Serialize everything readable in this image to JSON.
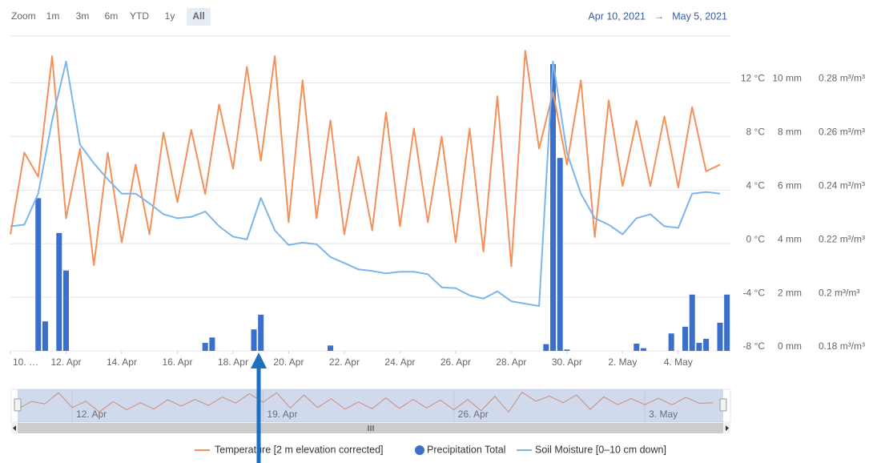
{
  "chart_data": {
    "type": "stock",
    "range_selector": {
      "label": "Zoom",
      "buttons": [
        {
          "text": "1m",
          "enabled": false
        },
        {
          "text": "3m",
          "enabled": false
        },
        {
          "text": "6m",
          "enabled": false
        },
        {
          "text": "YTD",
          "enabled": true
        },
        {
          "text": "1y",
          "enabled": false
        },
        {
          "text": "All",
          "enabled": true,
          "active": true
        }
      ],
      "from": "Apr 10, 2021",
      "separator": "→",
      "to": "May 5, 2021"
    },
    "x": [
      "2021-04-10T00:00",
      "2021-04-10T12:00",
      "2021-04-11T00:00",
      "2021-04-11T12:00",
      "2021-04-12T00:00",
      "2021-04-12T12:00",
      "2021-04-13T00:00",
      "2021-04-13T12:00",
      "2021-04-14T00:00",
      "2021-04-14T12:00",
      "2021-04-15T00:00",
      "2021-04-15T12:00",
      "2021-04-16T00:00",
      "2021-04-16T12:00",
      "2021-04-17T00:00",
      "2021-04-17T12:00",
      "2021-04-18T00:00",
      "2021-04-18T12:00",
      "2021-04-19T00:00",
      "2021-04-19T12:00",
      "2021-04-20T00:00",
      "2021-04-20T12:00",
      "2021-04-21T00:00",
      "2021-04-21T12:00",
      "2021-04-22T00:00",
      "2021-04-22T12:00",
      "2021-04-23T00:00",
      "2021-04-23T12:00",
      "2021-04-24T00:00",
      "2021-04-24T12:00",
      "2021-04-25T00:00",
      "2021-04-25T12:00",
      "2021-04-26T00:00",
      "2021-04-26T12:00",
      "2021-04-27T00:00",
      "2021-04-27T12:00",
      "2021-04-28T00:00",
      "2021-04-28T12:00",
      "2021-04-29T00:00",
      "2021-04-29T12:00",
      "2021-04-30T00:00",
      "2021-04-30T12:00",
      "2021-05-01T00:00",
      "2021-05-01T12:00",
      "2021-05-02T00:00",
      "2021-05-02T12:00",
      "2021-05-03T00:00",
      "2021-05-03T12:00",
      "2021-05-04T00:00",
      "2021-05-04T12:00",
      "2021-05-05T00:00",
      "2021-05-05T12:00"
    ],
    "xlim": [
      "2021-04-10T00:00",
      "2021-05-05T21:00"
    ],
    "xticks": [
      {
        "value": "2021-04-10T00:00",
        "label": "10. …"
      },
      {
        "value": "2021-04-12T00:00",
        "label": "12. Apr"
      },
      {
        "value": "2021-04-14T00:00",
        "label": "14. Apr"
      },
      {
        "value": "2021-04-16T00:00",
        "label": "16. Apr"
      },
      {
        "value": "2021-04-18T00:00",
        "label": "18. Apr"
      },
      {
        "value": "2021-04-20T00:00",
        "label": "20. Apr"
      },
      {
        "value": "2021-04-22T00:00",
        "label": "22. Apr"
      },
      {
        "value": "2021-04-24T00:00",
        "label": "24. Apr"
      },
      {
        "value": "2021-04-26T00:00",
        "label": "26. Apr"
      },
      {
        "value": "2021-04-28T00:00",
        "label": "28. Apr"
      },
      {
        "value": "2021-04-30T00:00",
        "label": "30. Apr"
      },
      {
        "value": "2021-05-02T00:00",
        "label": "2. May"
      },
      {
        "value": "2021-05-04T00:00",
        "label": "4. May"
      }
    ],
    "ylim": [
      -8,
      15.5
    ],
    "yticks": [
      {
        "value": -8,
        "label": "-8 °C"
      },
      {
        "value": -4,
        "label": "-4 °C"
      },
      {
        "value": 0,
        "label": "0 °C"
      },
      {
        "value": 4,
        "label": "4 °C"
      },
      {
        "value": 8,
        "label": "8 °C"
      },
      {
        "value": 12,
        "label": "12 °C"
      }
    ],
    "y2lim": [
      0,
      11.75
    ],
    "y2ticks": [
      {
        "value": 0,
        "label": "0 mm"
      },
      {
        "value": 2,
        "label": "2 mm"
      },
      {
        "value": 4,
        "label": "4 mm"
      },
      {
        "value": 6,
        "label": "6 mm"
      },
      {
        "value": 8,
        "label": "8 mm"
      },
      {
        "value": 10,
        "label": "10 mm"
      }
    ],
    "y3lim": [
      0.18,
      0.2975
    ],
    "y3ticks": [
      {
        "value": 0.18,
        "label": "0.18 m³/m³"
      },
      {
        "value": 0.2,
        "label": "0.2 m³/m³"
      },
      {
        "value": 0.22,
        "label": "0.22 m³/m³"
      },
      {
        "value": 0.24,
        "label": "0.24 m³/m³"
      },
      {
        "value": 0.26,
        "label": "0.26 m³/m³"
      },
      {
        "value": 0.28,
        "label": "0.28 m³/m³"
      }
    ],
    "grid": true,
    "legend": "bottom",
    "series": [
      {
        "name": "Temperature [2 m elevation corrected]",
        "type": "line",
        "color": "#f4905a",
        "axis": "y",
        "values": [
          0.7,
          6.8,
          5,
          14,
          1.9,
          7.1,
          -1.6,
          6.8,
          0.1,
          5.9,
          0.7,
          8.3,
          3.1,
          8.5,
          3.7,
          10.4,
          5.6,
          13.2,
          6.2,
          14,
          1.6,
          12.2,
          1.9,
          9.2,
          0.7,
          6.5,
          1,
          9.8,
          1.3,
          8.6,
          1.6,
          8,
          0.1,
          8.6,
          -0.6,
          11,
          -1.7,
          14.4,
          7.1,
          11.3,
          5.9,
          12.2,
          0.5,
          10.7,
          4.3,
          9.2,
          4.3,
          9.5,
          4.2,
          10.2,
          5.4,
          5.9
        ]
      },
      {
        "name": "Precipitation Total",
        "type": "column",
        "color": "#3a6fcb",
        "axis": "y2",
        "x": [
          "2021-04-11T00:00",
          "2021-04-11T06:00",
          "2021-04-11T18:00",
          "2021-04-12T00:00",
          "2021-04-17T00:00",
          "2021-04-17T06:00",
          "2021-04-18T18:00",
          "2021-04-19T00:00",
          "2021-04-21T12:00",
          "2021-04-29T06:00",
          "2021-04-29T12:00",
          "2021-04-29T18:00",
          "2021-04-30T00:00",
          "2021-05-02T12:00",
          "2021-05-02T18:00",
          "2021-05-03T18:00",
          "2021-05-04T06:00",
          "2021-05-04T12:00",
          "2021-05-04T18:00",
          "2021-05-05T00:00",
          "2021-05-05T12:00",
          "2021-05-05T18:00"
        ],
        "values": [
          5.7,
          1.1,
          4.4,
          3.0,
          0.3,
          0.5,
          0.8,
          1.35,
          0.2,
          0.25,
          10.7,
          7.2,
          0.05,
          0.27,
          0.1,
          0.65,
          0.9,
          2.1,
          0.3,
          0.45,
          1.05,
          2.1
        ]
      },
      {
        "name": "Soil Moisture [0–10 cm down]",
        "type": "line",
        "color": "#7cb5ec",
        "axis": "y3",
        "values": [
          0.2265,
          0.2271,
          0.2387,
          0.266,
          0.288,
          0.257,
          0.25,
          0.244,
          0.2387,
          0.2387,
          0.235,
          0.231,
          0.2295,
          0.23,
          0.232,
          0.2265,
          0.2226,
          0.2216,
          0.2371,
          0.225,
          0.2195,
          0.2204,
          0.2198,
          0.215,
          0.2128,
          0.2104,
          0.2098,
          0.2089,
          0.2095,
          0.2095,
          0.2086,
          0.2037,
          0.2034,
          0.2007,
          0.1995,
          0.2022,
          0.1985,
          0.1976,
          0.1967,
          0.288,
          0.2539,
          0.2387,
          0.2295,
          0.2271,
          0.2235,
          0.2295,
          0.231,
          0.2265,
          0.2259,
          0.2387,
          0.2393,
          0.2387
        ]
      }
    ],
    "navigator": {
      "xticks": [
        {
          "value": "2021-04-12T00:00",
          "label": "12. Apr"
        },
        {
          "value": "2021-04-19T00:00",
          "label": "19. Apr"
        },
        {
          "value": "2021-04-26T00:00",
          "label": "26. Apr"
        },
        {
          "value": "2021-05-03T00:00",
          "label": "3. May"
        }
      ]
    }
  }
}
